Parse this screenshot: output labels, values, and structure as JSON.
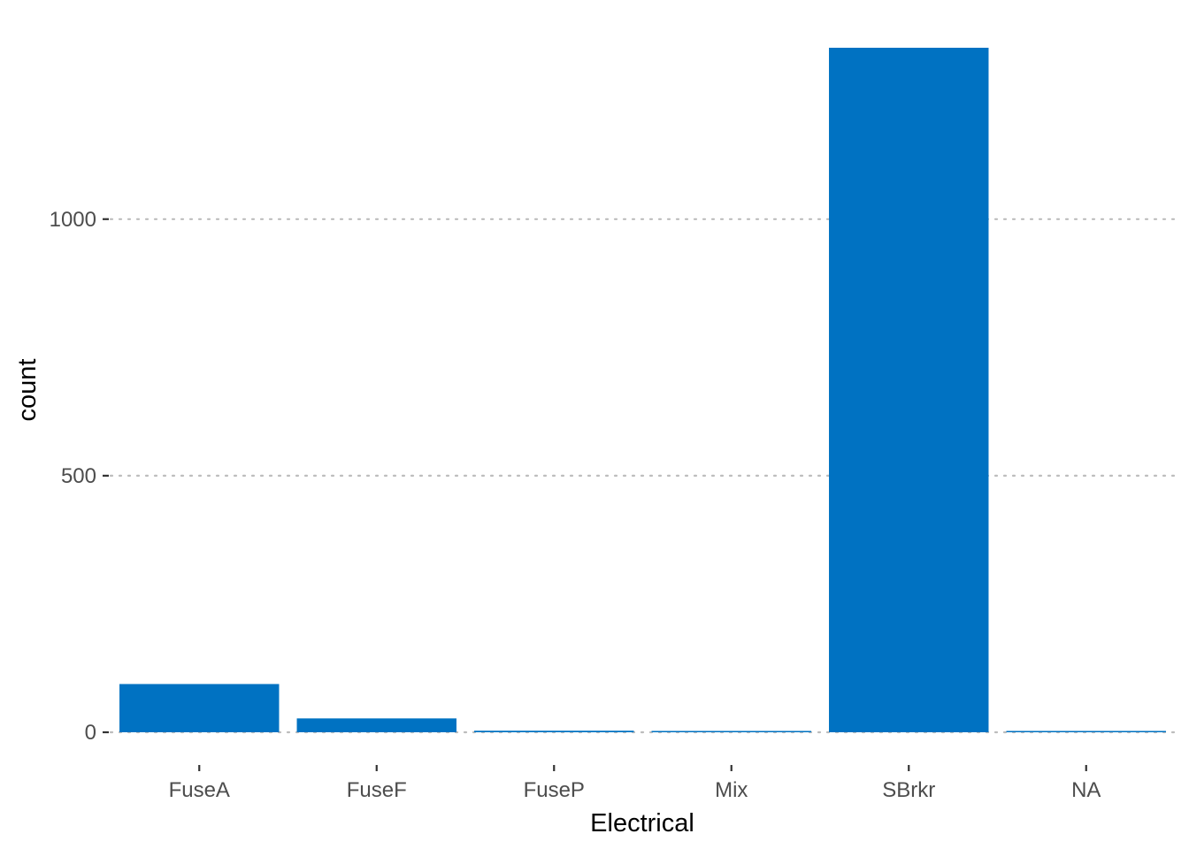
{
  "chart_data": {
    "type": "bar",
    "title": "",
    "xlabel": "Electrical",
    "ylabel": "count",
    "categories": [
      "FuseA",
      "FuseF",
      "FuseP",
      "Mix",
      "SBrkr",
      "NA"
    ],
    "values": [
      94,
      27,
      3,
      1,
      1334,
      1
    ],
    "ylim": [
      0,
      1334
    ],
    "yticks": [
      0,
      500,
      1000
    ],
    "ytick_labels": [
      "0",
      "500",
      "1000"
    ],
    "grid": "horizontal dotted",
    "legend": "none",
    "bar_color": "#0072C2"
  }
}
